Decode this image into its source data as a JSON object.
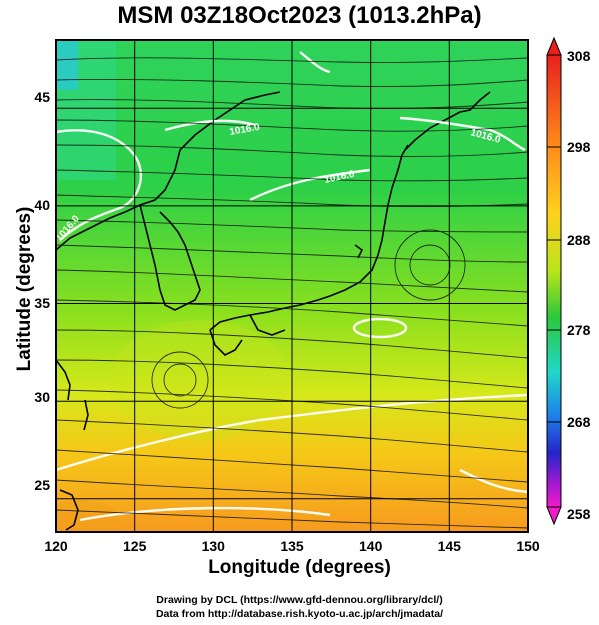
{
  "title": "MSM 03Z18Oct2023 (1013.2hPa)",
  "xlabel": "Longitude (degrees)",
  "ylabel": "Latitude  (degrees)",
  "x_ticks": [
    "120",
    "125",
    "130",
    "135",
    "140",
    "145",
    "150"
  ],
  "y_ticks": [
    "25",
    "30",
    "35",
    "40",
    "45"
  ],
  "colorbar": {
    "ticks": [
      "308",
      "298",
      "288",
      "278",
      "268",
      "258"
    ],
    "colors": [
      "#e8201e",
      "#ff8a1a",
      "#ffd21c",
      "#c8e61c",
      "#2cc83a",
      "#20d8c8",
      "#1e7ee8",
      "#2424c8",
      "#a61ad0",
      "#f01cc8"
    ]
  },
  "contour_labels": [
    "1016.0",
    "1016.0",
    "1016.0",
    "1016.0"
  ],
  "credits": {
    "line1": "Drawing by DCL (https://www.gfd-dennou.org/library/dcl/)",
    "line2": "Data from http://database.rish.kyoto-u.ac.jp/arch/jmadata/"
  },
  "map": {
    "lon_range": [
      120,
      150
    ],
    "lat_range": [
      22.4,
      47.6
    ],
    "grid": true
  }
}
